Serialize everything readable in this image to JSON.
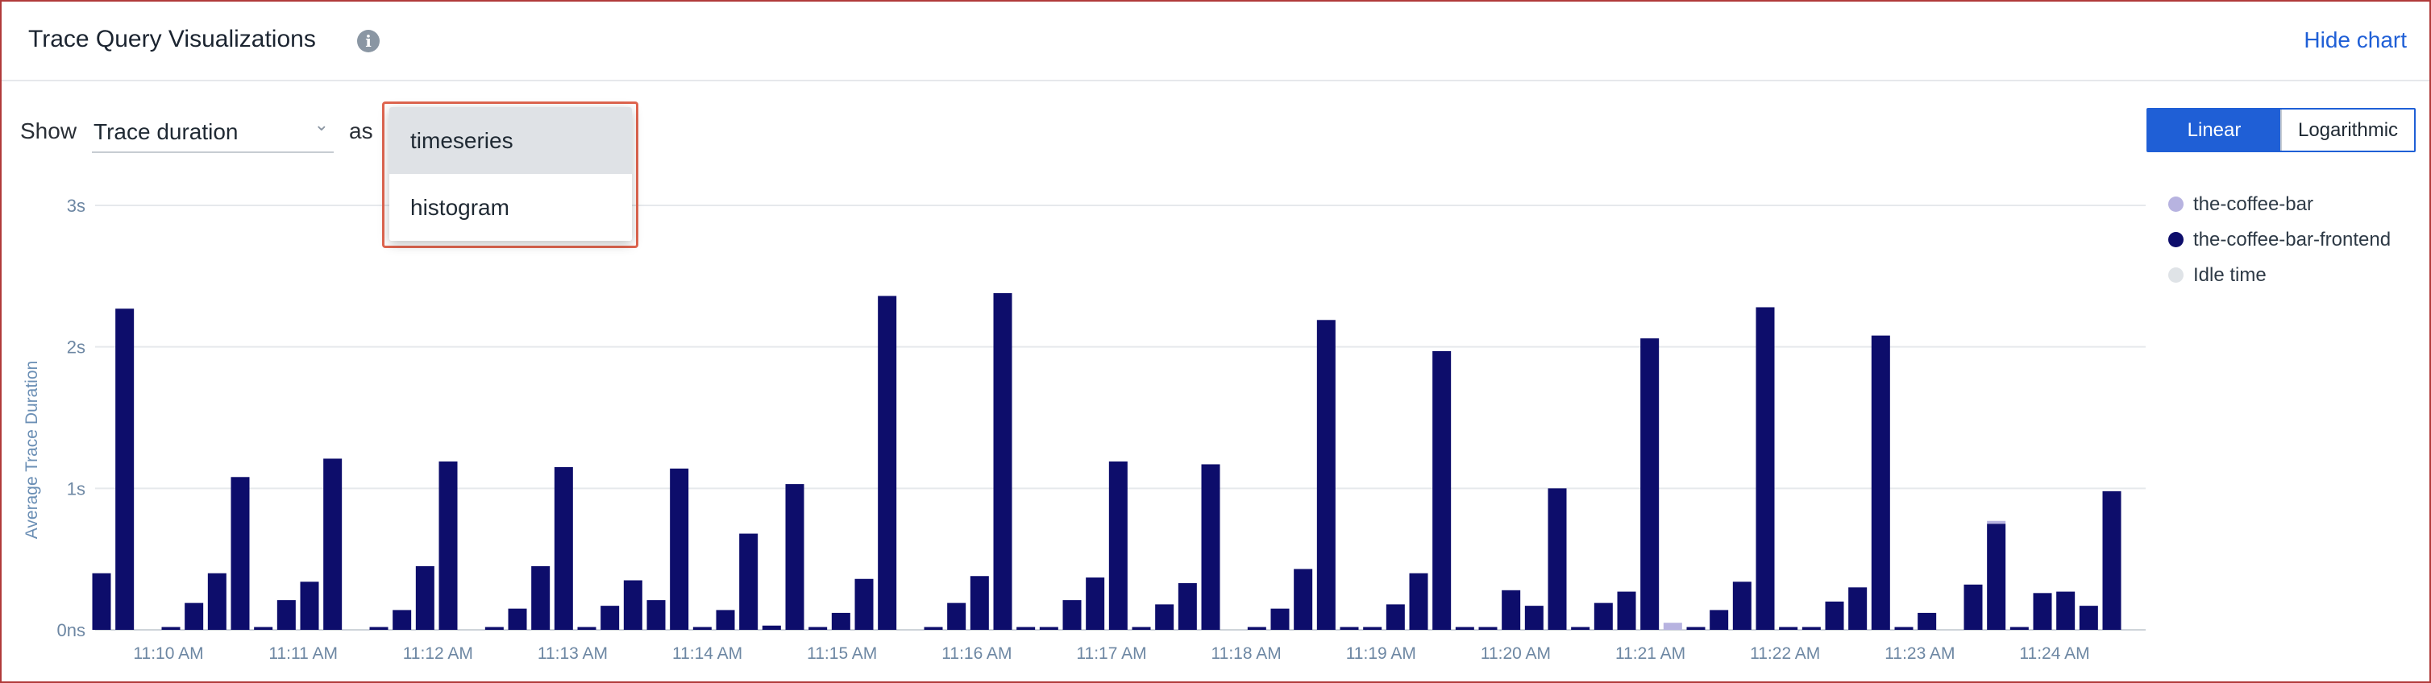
{
  "header": {
    "title": "Trace Query Visualizations",
    "info_icon": "info-icon",
    "hide_chart": "Hide chart"
  },
  "controls": {
    "show_label": "Show",
    "metric": "Trace duration",
    "as_label": "as",
    "dropdown_options": [
      "timeseries",
      "histogram"
    ],
    "highlighted_option": "timeseries"
  },
  "scale_toggle": {
    "linear": "Linear",
    "logarithmic": "Logarithmic",
    "active": "Linear"
  },
  "legend": [
    {
      "label": "the-coffee-bar",
      "color": "#b7b3e0"
    },
    {
      "label": "the-coffee-bar-frontend",
      "color": "#0d0d6b"
    },
    {
      "label": "Idle time",
      "color": "#dfe3e7"
    }
  ],
  "chart_data": {
    "type": "bar",
    "title": "",
    "xlabel": "",
    "ylabel": "Average Trace Duration",
    "yunit": "s",
    "ylim": [
      0,
      3
    ],
    "y_ticks": [
      "0ns",
      "1s",
      "2s",
      "3s"
    ],
    "x_tick_labels": [
      "11:10 AM",
      "11:11 AM",
      "11:12 AM",
      "11:13 AM",
      "11:14 AM",
      "11:15 AM",
      "11:16 AM",
      "11:17 AM",
      "11:18 AM",
      "11:19 AM",
      "11:20 AM",
      "11:21 AM",
      "11:22 AM",
      "11:23 AM",
      "11:24 AM"
    ],
    "series": [
      {
        "name": "the-coffee-bar-frontend",
        "color": "#0d0d6b",
        "values": [
          0.4,
          2.27,
          0.0,
          0.02,
          0.19,
          0.4,
          1.08,
          0.02,
          0.21,
          0.34,
          1.21,
          0.0,
          0.02,
          0.14,
          0.45,
          1.19,
          0.0,
          0.02,
          0.15,
          0.45,
          1.15,
          0.02,
          0.17,
          0.35,
          0.21,
          1.14,
          0.02,
          0.14,
          0.68,
          0.03,
          1.03,
          0.02,
          0.12,
          0.36,
          2.36,
          0.0,
          0.02,
          0.19,
          0.38,
          2.38,
          0.02,
          0.02,
          0.21,
          0.37,
          1.19,
          0.02,
          0.18,
          0.33,
          1.17,
          0.0,
          0.02,
          0.15,
          0.43,
          2.19,
          0.02,
          0.02,
          0.18,
          0.4,
          1.97,
          0.02,
          0.02,
          0.28,
          0.17,
          1.0,
          0.02,
          0.19,
          0.27,
          2.06,
          0.0,
          0.02,
          0.14,
          0.34,
          2.28,
          0.02,
          0.02,
          0.2,
          0.3,
          2.08,
          0.02,
          0.12,
          0.0,
          0.32,
          0.75,
          0.02,
          0.26,
          0.27,
          0.17,
          0.98
        ]
      },
      {
        "name": "the-coffee-bar",
        "color": "#b7b3e0",
        "values": [
          0,
          0,
          0,
          0,
          0,
          0,
          0,
          0,
          0,
          0,
          0,
          0,
          0,
          0,
          0,
          0,
          0,
          0,
          0,
          0,
          0,
          0,
          0,
          0,
          0,
          0,
          0,
          0,
          0,
          0,
          0,
          0,
          0,
          0,
          0,
          0,
          0,
          0,
          0,
          0,
          0,
          0,
          0,
          0,
          0,
          0,
          0,
          0,
          0,
          0,
          0,
          0,
          0,
          0,
          0,
          0,
          0,
          0,
          0,
          0,
          0,
          0,
          0,
          0,
          0,
          0,
          0,
          0,
          0.05,
          0,
          0,
          0,
          0,
          0,
          0,
          0,
          0,
          0,
          0,
          0,
          0,
          0,
          0.02,
          0,
          0,
          0,
          0,
          0
        ]
      }
    ]
  }
}
